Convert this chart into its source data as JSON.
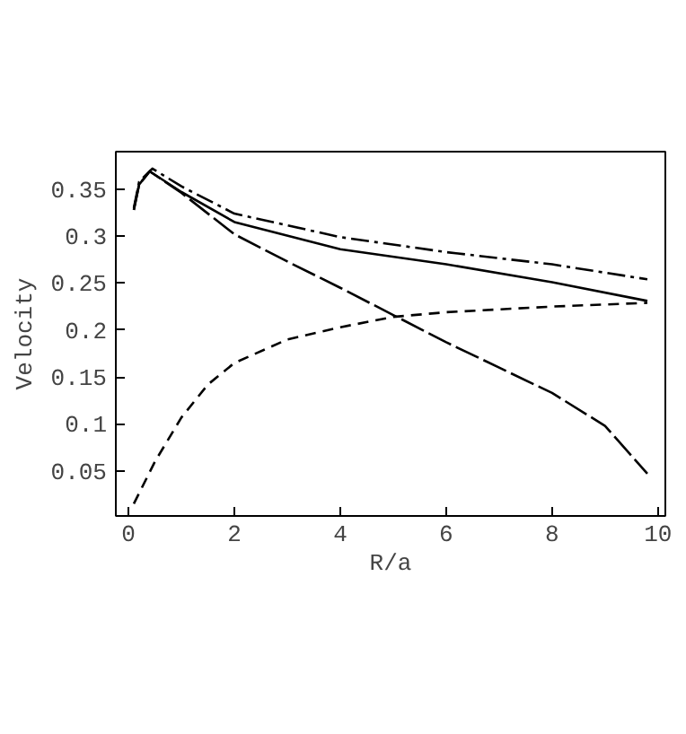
{
  "chart_data": {
    "type": "line",
    "xlabel": "R/a",
    "ylabel": "Velocity",
    "xlim": [
      -0.24,
      10.14
    ],
    "ylim": [
      0.002,
      0.39
    ],
    "xticks": [
      0,
      2,
      4,
      6,
      8,
      10
    ],
    "yticks": [
      0.05,
      {
        "value": 0.1,
        "label": "0.1"
      },
      0.15,
      {
        "value": 0.2,
        "label": "0.2"
      },
      0.25,
      {
        "value": 0.3,
        "label": "0.3"
      },
      0.35
    ],
    "grid": false,
    "series": [
      {
        "color": "#000000",
        "line_style": "solid",
        "x": [
          0.1,
          0.2,
          0.4,
          1,
          2,
          4,
          6,
          8,
          9.8
        ],
        "values": [
          0.328,
          0.355,
          0.369,
          0.347,
          0.315,
          0.286,
          0.27,
          0.251,
          0.231
        ]
      },
      {
        "color": "#000000",
        "line_style": "dashdot",
        "x": [
          0.1,
          0.2,
          0.45,
          1,
          2,
          4,
          6,
          8,
          9.8
        ],
        "values": [
          0.33,
          0.358,
          0.372,
          0.353,
          0.324,
          0.299,
          0.283,
          0.27,
          0.254
        ]
      },
      {
        "color": "#000000",
        "line_style": "longdash",
        "x": [
          0.1,
          0.2,
          0.4,
          1,
          2,
          3,
          4,
          5,
          6,
          7,
          8,
          9,
          9.8
        ],
        "values": [
          0.328,
          0.355,
          0.369,
          0.346,
          0.302,
          0.273,
          0.245,
          0.216,
          0.187,
          0.16,
          0.133,
          0.098,
          0.047
        ]
      },
      {
        "color": "#000000",
        "line_style": "dashed",
        "x": [
          0.1,
          0.5,
          1,
          1.5,
          2,
          3,
          4,
          5,
          6,
          8,
          9.8
        ],
        "values": [
          0.015,
          0.06,
          0.107,
          0.142,
          0.165,
          0.19,
          0.203,
          0.214,
          0.219,
          0.225,
          0.229
        ]
      }
    ]
  }
}
